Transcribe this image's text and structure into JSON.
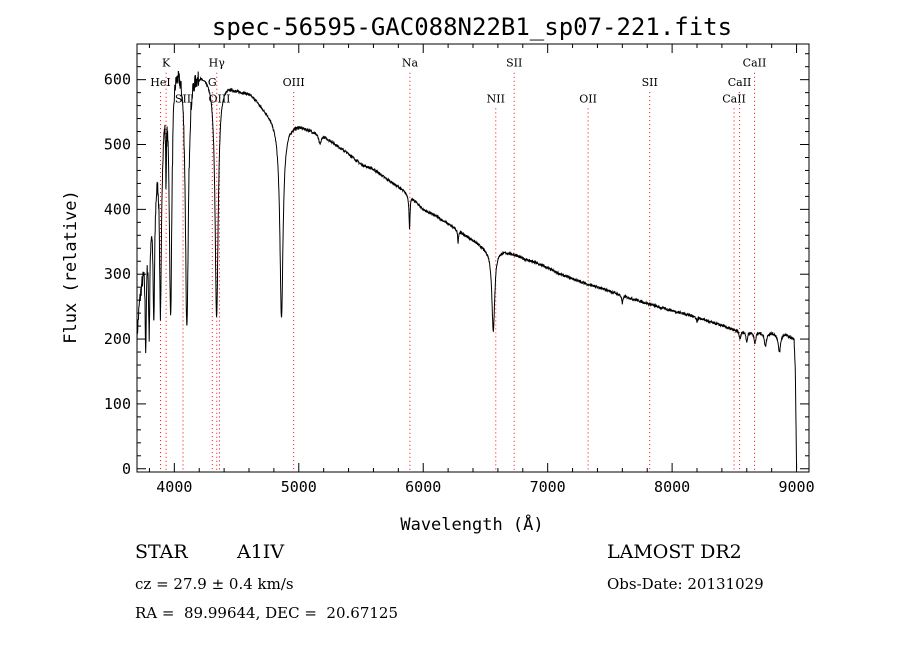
{
  "chart_data": {
    "type": "line",
    "title": "spec-56595-GAC088N22B1_sp07-221.fits",
    "xlabel": "Wavelength (Å)",
    "ylabel": "Flux (relative)",
    "xlim": [
      3700,
      9100
    ],
    "ylim": [
      -5,
      655
    ],
    "x_ticks": [
      4000,
      5000,
      6000,
      7000,
      8000,
      9000
    ],
    "y_ticks": [
      0,
      100,
      200,
      300,
      400,
      500,
      600
    ],
    "grid": false,
    "line_color": "#000000",
    "marker_color": "#ff0000",
    "continuum": {
      "x": [
        3700,
        3720,
        3760,
        3800,
        3850,
        3900,
        3950,
        4000,
        4050,
        4100,
        4150,
        4200,
        4250,
        4300,
        4350,
        4400,
        4450,
        4500,
        4550,
        4600,
        4650,
        4700,
        4750,
        4800,
        4850,
        4900,
        4950,
        5000,
        5100,
        5200,
        5300,
        5400,
        5500,
        5600,
        5700,
        5800,
        5900,
        6000,
        6100,
        6200,
        6300,
        6400,
        6500,
        6600,
        6700,
        6800,
        6900,
        7000,
        7100,
        7200,
        7300,
        7400,
        7500,
        7600,
        7700,
        7800,
        7900,
        8000,
        8100,
        8200,
        8300,
        8400,
        8500,
        8600,
        8700,
        8800,
        8900,
        8980,
        8990,
        9000
      ],
      "y": [
        205,
        260,
        330,
        400,
        470,
        560,
        610,
        640,
        632,
        627,
        620,
        615,
        610,
        605,
        600,
        597,
        592,
        586,
        583,
        580,
        572,
        560,
        550,
        538,
        527,
        527,
        530,
        530,
        522,
        514,
        500,
        486,
        470,
        462,
        448,
        435,
        420,
        400,
        390,
        378,
        365,
        353,
        340,
        338,
        333,
        325,
        318,
        310,
        300,
        293,
        286,
        280,
        274,
        267,
        261,
        255,
        249,
        244,
        239,
        234,
        227,
        221,
        214,
        212,
        211,
        210,
        209,
        200,
        150,
        0
      ]
    },
    "absorption_lines": [
      {
        "center": 3770,
        "depth": 0.45,
        "width": 6
      },
      {
        "center": 3798,
        "depth": 0.45,
        "width": 7
      },
      {
        "center": 3835,
        "depth": 0.48,
        "width": 8
      },
      {
        "center": 3889,
        "depth": 0.55,
        "width": 10
      },
      {
        "center": 3933,
        "depth": 0.2,
        "width": 3
      },
      {
        "center": 3970,
        "depth": 0.62,
        "width": 12
      },
      {
        "center": 4101,
        "depth": 0.66,
        "width": 14
      },
      {
        "center": 4340,
        "depth": 0.61,
        "width": 15
      },
      {
        "center": 4861,
        "depth": 0.56,
        "width": 15
      },
      {
        "center": 5170,
        "depth": 0.03,
        "width": 12
      },
      {
        "center": 5890,
        "depth": 0.12,
        "width": 5
      },
      {
        "center": 6280,
        "depth": 0.05,
        "width": 4
      },
      {
        "center": 6563,
        "depth": 0.37,
        "width": 14
      },
      {
        "center": 7600,
        "depth": 0.05,
        "width": 5
      },
      {
        "center": 8200,
        "depth": 0.03,
        "width": 6
      },
      {
        "center": 8545,
        "depth": 0.06,
        "width": 8
      },
      {
        "center": 8600,
        "depth": 0.07,
        "width": 8
      },
      {
        "center": 8665,
        "depth": 0.08,
        "width": 9
      },
      {
        "center": 8750,
        "depth": 0.1,
        "width": 10
      },
      {
        "center": 8862,
        "depth": 0.14,
        "width": 12
      }
    ],
    "line_markers": [
      {
        "label": "K",
        "wavelength": 3934,
        "label_y": 620
      },
      {
        "label": "HeI",
        "wavelength": 3889,
        "label_y": 590
      },
      {
        "label": "SII",
        "wavelength": 4070,
        "label_y": 565
      },
      {
        "label": "Hγ",
        "wavelength": 4341,
        "label_y": 620
      },
      {
        "label": "G",
        "wavelength": 4305,
        "label_y": 590
      },
      {
        "label": "OIII",
        "wavelength": 4363,
        "label_y": 565
      },
      {
        "label": "OIII",
        "wavelength": 4959,
        "label_y": 590
      },
      {
        "label": "Na",
        "wavelength": 5893,
        "label_y": 620
      },
      {
        "label": "SII",
        "wavelength": 6731,
        "label_y": 620
      },
      {
        "label": "NII",
        "wavelength": 6583,
        "label_y": 565
      },
      {
        "label": "OII",
        "wavelength": 7325,
        "label_y": 565
      },
      {
        "label": "SII",
        "wavelength": 7820,
        "label_y": 590
      },
      {
        "label": "CaII",
        "wavelength": 8662,
        "label_y": 620
      },
      {
        "label": "CaII",
        "wavelength": 8542,
        "label_y": 590
      },
      {
        "label": "CaII",
        "wavelength": 8498,
        "label_y": 565
      }
    ]
  },
  "info": {
    "object_class": "STAR",
    "subclass": "A1IV",
    "survey": "LAMOST DR2",
    "redshift": "cz = 27.9 ± 0.4 km/s",
    "obs_date": "Obs-Date: 20131029",
    "coords": "RA =  89.99644, DEC =  20.67125"
  }
}
